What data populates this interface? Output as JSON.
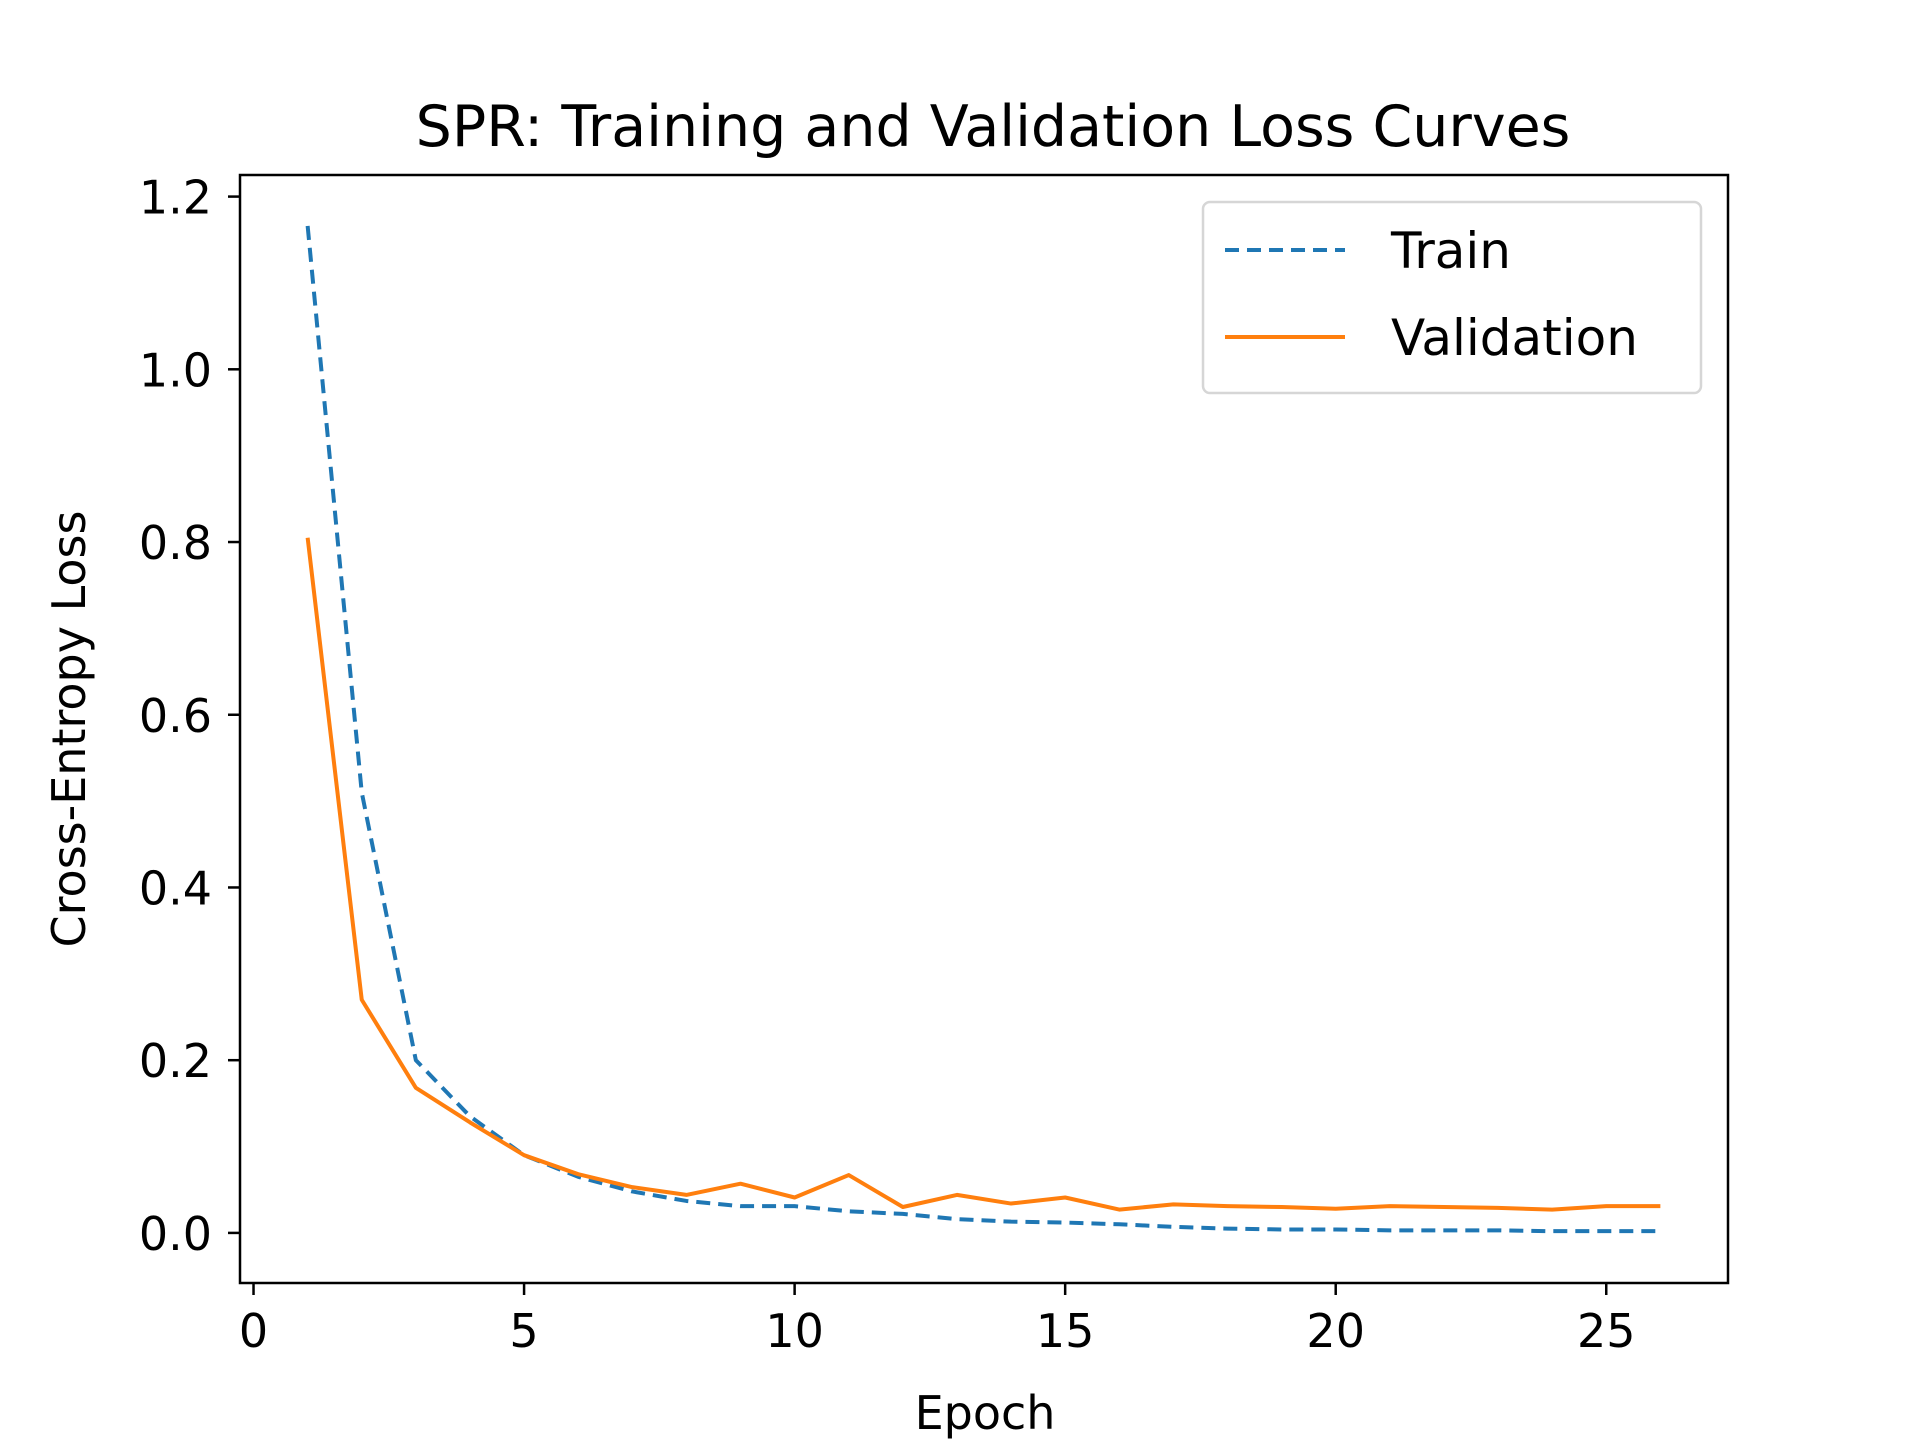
{
  "colors": {
    "train": "#1f77b4",
    "validation": "#ff7f0e"
  },
  "chart_data": {
    "type": "line",
    "title": "SPR: Training and Validation Loss Curves",
    "xlabel": "Epoch",
    "ylabel": "Cross-Entropy Loss",
    "xlim": [
      -0.25,
      27.25
    ],
    "ylim": [
      -0.058,
      1.225
    ],
    "xticks": [
      0,
      5,
      10,
      15,
      20,
      25
    ],
    "xtick_labels": [
      "0",
      "5",
      "10",
      "15",
      "20",
      "25"
    ],
    "yticks": [
      0.0,
      0.2,
      0.4,
      0.6,
      0.8,
      1.0,
      1.2
    ],
    "ytick_labels": [
      "0.0",
      "0.2",
      "0.4",
      "0.6",
      "0.8",
      "1.0",
      "1.2"
    ],
    "grid": false,
    "legend": "upper right",
    "x": [
      1,
      2,
      3,
      4,
      5,
      6,
      7,
      8,
      9,
      10,
      11,
      12,
      13,
      14,
      15,
      16,
      17,
      18,
      19,
      20,
      21,
      22,
      23,
      24,
      25,
      26
    ],
    "series": [
      {
        "name": "Train",
        "style": "dashed",
        "values": [
          1.166,
          0.51,
          0.2,
          0.135,
          0.09,
          0.065,
          0.048,
          0.037,
          0.031,
          0.031,
          0.025,
          0.022,
          0.016,
          0.013,
          0.012,
          0.01,
          0.007,
          0.005,
          0.004,
          0.004,
          0.003,
          0.003,
          0.003,
          0.002,
          0.002,
          0.002
        ]
      },
      {
        "name": "Validation",
        "style": "solid",
        "values": [
          0.805,
          0.27,
          0.168,
          0.128,
          0.09,
          0.068,
          0.053,
          0.044,
          0.057,
          0.041,
          0.067,
          0.03,
          0.044,
          0.034,
          0.041,
          0.027,
          0.033,
          0.031,
          0.03,
          0.028,
          0.031,
          0.03,
          0.029,
          0.027,
          0.031,
          0.031
        ]
      }
    ]
  }
}
